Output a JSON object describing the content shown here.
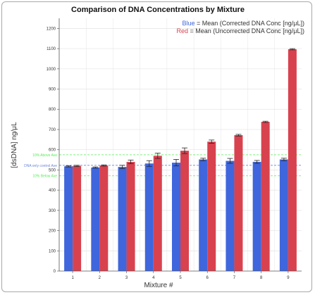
{
  "colors": {
    "blue": "#3f66dc",
    "red": "#d8424f",
    "green_ref": "#55ee55",
    "blue_ref": "#6b86d8",
    "grid": "#e4e4e4"
  },
  "chart_data": {
    "type": "bar",
    "title": "Comparison of DNA Concentrations by Mixture",
    "xlabel": "Mixture #",
    "ylabel": "[dsDNA] ng/μL",
    "ylim": [
      0,
      1250
    ],
    "yticks": [
      0,
      100,
      200,
      300,
      400,
      500,
      600,
      700,
      800,
      900,
      1000,
      1100,
      1200
    ],
    "grid": true,
    "legend_position": "top-right",
    "legend": [
      {
        "key": "Blue",
        "text": " = Mean (Corrected DNA Conc [ng/μL])",
        "color": "#3f66dc"
      },
      {
        "key": "Red",
        "text": " = Mean (Uncorrected DNA Conc [ng/μL])",
        "color": "#d8424f"
      }
    ],
    "categories": [
      "1",
      "2",
      "3",
      "4",
      "5",
      "6",
      "7",
      "8",
      "9"
    ],
    "series": [
      {
        "name": "Mean (Corrected DNA Conc [ng/μL])",
        "color": "#3f66dc",
        "values": [
          518,
          512,
          515,
          532,
          536,
          552,
          545,
          540,
          552
        ],
        "errors": [
          3,
          3,
          8,
          14,
          16,
          6,
          12,
          7,
          6
        ]
      },
      {
        "name": "Mean (Uncorrected DNA Conc [ng/μL])",
        "color": "#d8424f",
        "values": [
          520,
          522,
          540,
          570,
          595,
          640,
          672,
          738,
          1097
        ],
        "errors": [
          3,
          3,
          9,
          13,
          14,
          8,
          4,
          3,
          3
        ]
      }
    ],
    "reference_lines": [
      {
        "label": "10% Above Ave",
        "value": 575,
        "color": "#55ee55"
      },
      {
        "label": "DNA only control Ave",
        "value": 523,
        "color": "#6b86d8"
      },
      {
        "label": "10% Below Ave",
        "value": 471,
        "color": "#55ee55"
      }
    ]
  }
}
